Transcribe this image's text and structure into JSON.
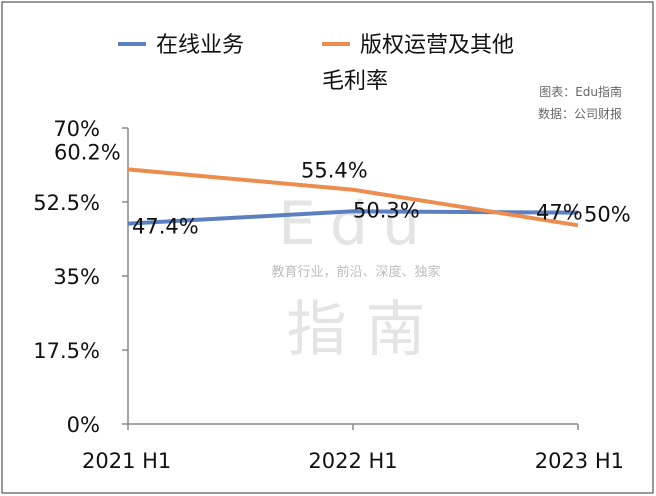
{
  "source_lines": [
    "图表：Edu指南",
    "数据：公司财报"
  ],
  "watermark": {
    "latin": "Edu",
    "tagline": "教育行业，前沿、深度、独家",
    "cn": "指 南"
  },
  "chart_data": {
    "type": "line",
    "title": "毛利率",
    "categories": [
      "2021 H1",
      "2022 H1",
      "2023 H1"
    ],
    "series": [
      {
        "name": "在线业务",
        "values": [
          47.4,
          50.3,
          50
        ],
        "labels": [
          "47.4%",
          "50.3%",
          "50%"
        ],
        "color": "#5b7fc0"
      },
      {
        "name": "版权运营及其他",
        "values": [
          60.2,
          55.4,
          47
        ],
        "labels": [
          "60.2%",
          "55.4%",
          "47%"
        ],
        "color": "#ec8c4d"
      }
    ],
    "ylim": [
      0,
      70
    ],
    "yticks": [
      0,
      17.5,
      35,
      52.5,
      70
    ],
    "ytick_labels": [
      "0%",
      "17.5%",
      "35%",
      "52.5%",
      "70%"
    ],
    "xlabel": "",
    "ylabel": "",
    "grid": false,
    "legend_position": "top"
  }
}
